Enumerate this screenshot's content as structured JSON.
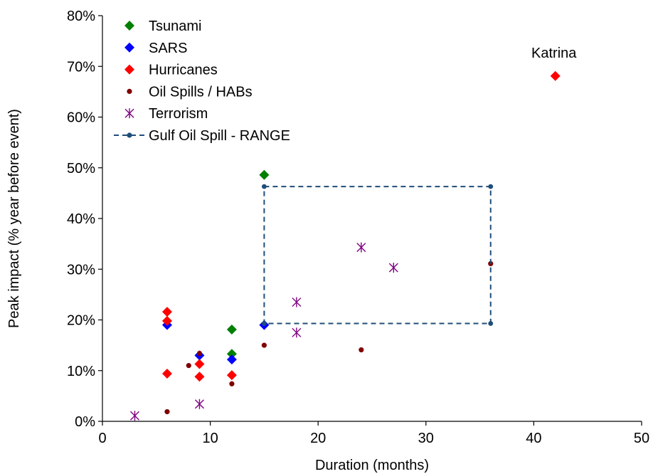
{
  "chart_data": {
    "type": "scatter",
    "title": "",
    "xlabel": "Duration (months)",
    "ylabel": "Peak impact (% year before event)",
    "xlim": [
      0,
      50
    ],
    "ylim": [
      0,
      80
    ],
    "x_ticks": [
      "0",
      "10",
      "20",
      "30",
      "40",
      "50"
    ],
    "y_ticks": [
      "0%",
      "10%",
      "20%",
      "30%",
      "40%",
      "50%",
      "60%",
      "70%",
      "80%"
    ],
    "grid": false,
    "legend_position": "top-left",
    "series": [
      {
        "name": "Tsunami",
        "marker": "diamond",
        "color": "#008000",
        "points": [
          [
            12,
            18.1
          ],
          [
            12,
            13.3
          ],
          [
            15,
            48.6
          ]
        ]
      },
      {
        "name": "SARS",
        "marker": "diamond",
        "color": "#0000ff",
        "points": [
          [
            6,
            19.0
          ],
          [
            9,
            13.0
          ],
          [
            12,
            12.2
          ],
          [
            15,
            19.0
          ]
        ]
      },
      {
        "name": "Hurricanes",
        "marker": "diamond",
        "color": "#ff0000",
        "points": [
          [
            6,
            21.6
          ],
          [
            6,
            19.8
          ],
          [
            6,
            9.4
          ],
          [
            9,
            11.3
          ],
          [
            9,
            8.8
          ],
          [
            12,
            9.1
          ],
          [
            42,
            68.1
          ]
        ]
      },
      {
        "name": "Oil Spills / HABs",
        "marker": "circle",
        "color": "#800000",
        "points": [
          [
            6,
            1.9
          ],
          [
            8,
            11.0
          ],
          [
            9,
            13.4
          ],
          [
            12,
            7.4
          ],
          [
            15,
            15.0
          ],
          [
            24,
            14.1
          ],
          [
            36,
            31.1
          ]
        ]
      },
      {
        "name": "Terrorism",
        "marker": "asterisk",
        "color": "#800080",
        "points": [
          [
            3,
            1.1
          ],
          [
            9,
            3.4
          ],
          [
            18,
            23.5
          ],
          [
            18,
            17.5
          ],
          [
            24,
            34.3
          ],
          [
            27,
            30.3
          ]
        ]
      },
      {
        "name": "Gulf Oil Spill - RANGE",
        "marker": "circle-dashed-line",
        "color": "#1f4e79",
        "points": [
          [
            15,
            46.3
          ],
          [
            36,
            46.3
          ],
          [
            36,
            19.3
          ],
          [
            15,
            19.3
          ],
          [
            15,
            46.3
          ]
        ]
      }
    ],
    "annotations": [
      {
        "text": "Katrina",
        "x": 42,
        "y": 68.1
      }
    ]
  }
}
